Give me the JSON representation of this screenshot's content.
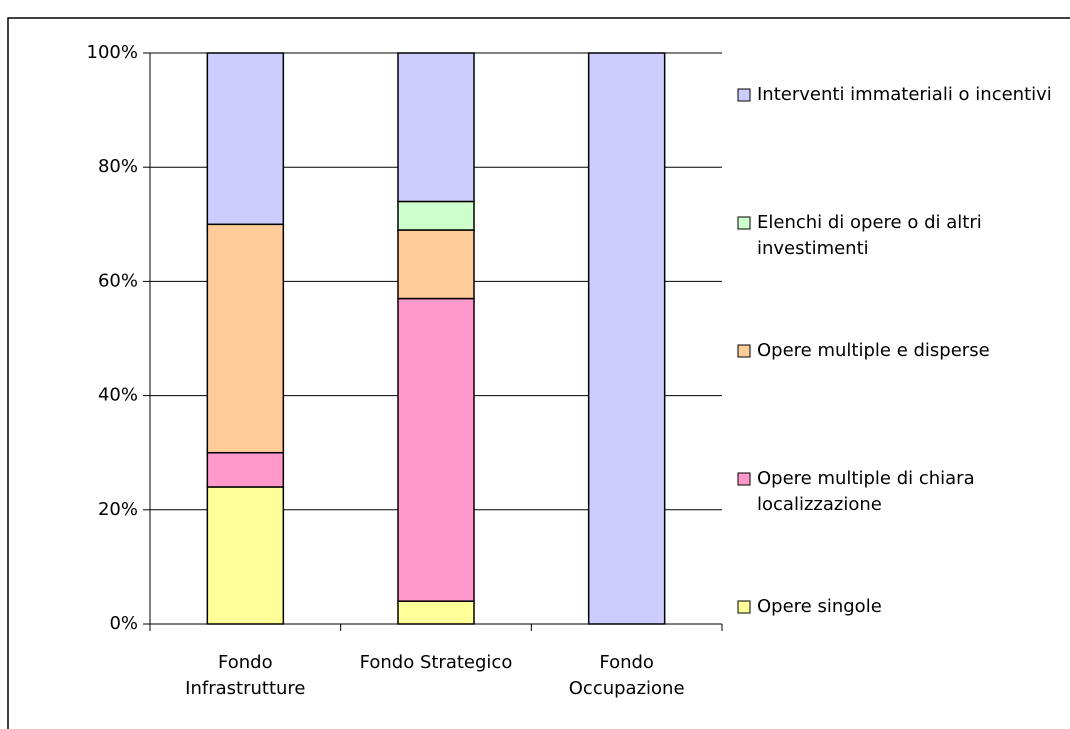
{
  "chart_data": {
    "type": "stacked_bar",
    "categories": [
      "Fondo Infrastrutture",
      "Fondo Strategico",
      "Fondo Occupazione"
    ],
    "series": [
      {
        "name": "Opere singole",
        "color": "#ffff99",
        "values": [
          24,
          4,
          0
        ]
      },
      {
        "name": "Opere multiple di chiara localizzazione",
        "color": "#ff99cc",
        "values": [
          6,
          53,
          0
        ]
      },
      {
        "name": "Opere multiple e disperse",
        "color": "#ffcc99",
        "values": [
          40,
          12,
          0
        ]
      },
      {
        "name": "Elenchi di opere o di altri investimenti",
        "color": "#ccffcc",
        "values": [
          0,
          5,
          0
        ]
      },
      {
        "name": "Interventi immateriali o incentivi",
        "color": "#ccccff",
        "values": [
          30,
          26,
          100
        ]
      }
    ],
    "ylim": [
      0,
      100
    ],
    "yticks": [
      {
        "value": 0,
        "label": "0%"
      },
      {
        "value": 20,
        "label": "20%"
      },
      {
        "value": 40,
        "label": "40%"
      },
      {
        "value": 60,
        "label": "60%"
      },
      {
        "value": 80,
        "label": "80%"
      },
      {
        "value": 100,
        "label": "100%"
      }
    ],
    "grid": true,
    "legend": "right"
  }
}
